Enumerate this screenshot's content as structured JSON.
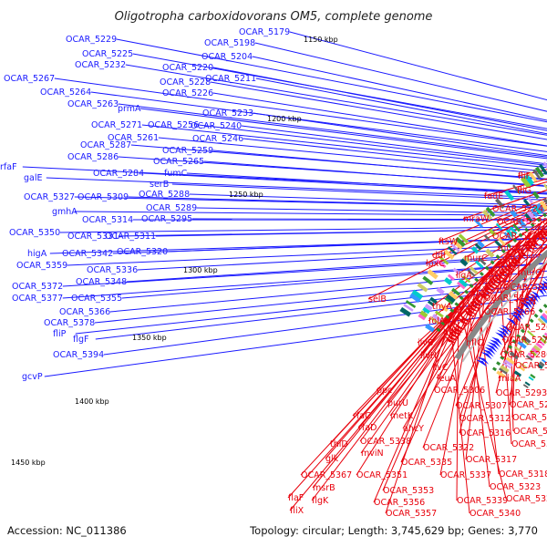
{
  "title": "Oligotropha carboxidovorans OM5, complete genome",
  "footer": {
    "accession": "Accession: NC_011386",
    "summary": "Topology: circular; Length: 3,745,629 bp; Genes: 3,770"
  },
  "colors": {
    "forward_strand": "#1a1aff",
    "reverse_strand": "#e8000b",
    "backbone": "#888888",
    "tick": "#2e8b2e"
  },
  "kbp_markers": [
    "1150 kbp",
    "1200 kbp",
    "1250 kbp",
    "1300 kbp",
    "1350 kbp",
    "1400 kbp",
    "1450 kbp"
  ],
  "blue_labels": [
    "OCAR_5229",
    "OCAR_5179",
    "OCAR_5198",
    "OCAR_5225",
    "OCAR_5232",
    "OCAR_5204",
    "OCAR_5220",
    "OCAR_5267",
    "OCAR_5228",
    "OCAR_5211",
    "OCAR_5264",
    "OCAR_5226",
    "OCAR_5263",
    "prmA",
    "OCAR_5233",
    "OCAR_5271",
    "OCAR_5256",
    "OCAR_5240",
    "OCAR_5261",
    "OCAR_5246",
    "OCAR_5287",
    "OCAR_5259",
    "OCAR_5286",
    "OCAR_5265",
    "rfaF",
    "OCAR_5284",
    "fumC",
    "galE",
    "serB",
    "OCAR_5327",
    "OCAR_5309",
    "OCAR_5288",
    "OCAR_5289",
    "gmhA",
    "OCAR_5314",
    "OCAR_5295",
    "OCAR_5350",
    "OCAR_5331",
    "OCAR_5311",
    "higA",
    "OCAR_5342",
    "OCAR_5320",
    "OCAR_5359",
    "OCAR_5336",
    "OCAR_5348",
    "OCAR_5372",
    "OCAR_5377",
    "OCAR_5355",
    "OCAR_5366",
    "OCAR_5378",
    "fliP",
    "flgF",
    "OCAR_5394",
    "gcvP"
  ],
  "red_labels": [
    "fliF",
    "fliG",
    "fadE",
    "OCAR_5224",
    "mraW",
    "OCAR_5230",
    "OCAR_5236",
    "ftsW",
    "murE",
    "ddl",
    "murC",
    "mraY",
    "lpxC",
    "ftsA",
    "murG",
    "ligA",
    "OCAR_5252",
    "OCAR_5262",
    "recN",
    "selB",
    "thyA",
    "OCAR_5266",
    "folA",
    "OCAR_5269",
    "hflK",
    "hflC",
    "OCAR_5270",
    "ilvB",
    "OCAR_5280",
    "ilvH",
    "OCAR_5281",
    "ilvC",
    "leuA",
    "miaA",
    "ppc",
    "OCAR_5306",
    "OCAR_5293",
    "purU",
    "OCAR_5307",
    "OCAR_5294",
    "rfaC",
    "metK",
    "OCAR_5312",
    "OCAR_5298",
    "rfaD",
    "ahcY",
    "OCAR_5316",
    "OCAR_5302",
    "thiD",
    "OCAR_5338",
    "OCAR_5322",
    "OCAR_5305",
    "mviN",
    "OCAR_5317",
    "glk",
    "OCAR_5335",
    "OCAR_5318",
    "OCAR_5337",
    "OCAR_5323",
    "OCAR_5367",
    "OCAR_5351",
    "OCAR_5324",
    "msrB",
    "OCAR_5353",
    "OCAR_5339",
    "flaF",
    "flgK",
    "OCAR_5356",
    "OCAR_5340",
    "fliX",
    "OCAR_5357"
  ]
}
